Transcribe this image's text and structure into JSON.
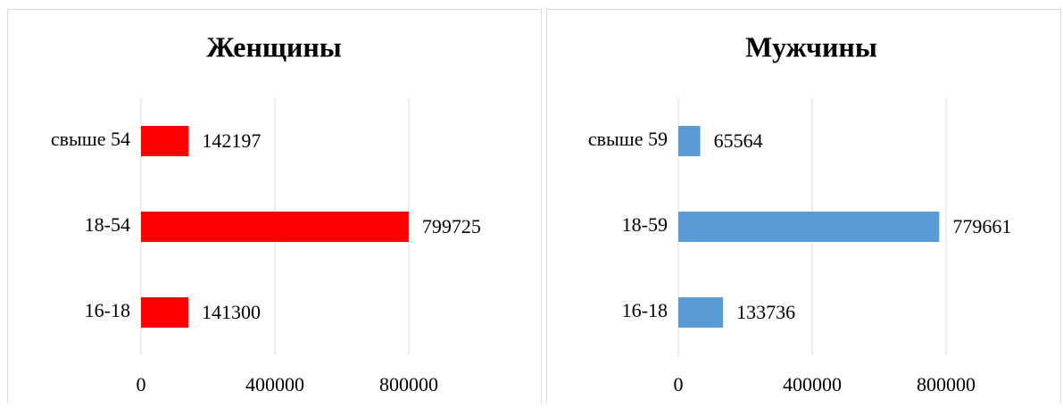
{
  "chart_data": [
    {
      "type": "bar",
      "orientation": "horizontal",
      "title": "Женщины",
      "categories": [
        "свыше 54",
        "18-54",
        "16-18"
      ],
      "values": [
        142197,
        799725,
        141300
      ],
      "color": "#ff0000",
      "xlim": [
        0,
        1000000
      ],
      "xticks": [
        0,
        400000,
        800000
      ],
      "grid": true
    },
    {
      "type": "bar",
      "orientation": "horizontal",
      "title": "Мужчины",
      "categories": [
        "свыше 59",
        "18-59",
        "16-18"
      ],
      "values": [
        65564,
        779661,
        133736
      ],
      "color": "#5b9bd5",
      "xlim": [
        0,
        1000000
      ],
      "xticks": [
        0,
        400000,
        800000
      ],
      "grid": true
    }
  ]
}
